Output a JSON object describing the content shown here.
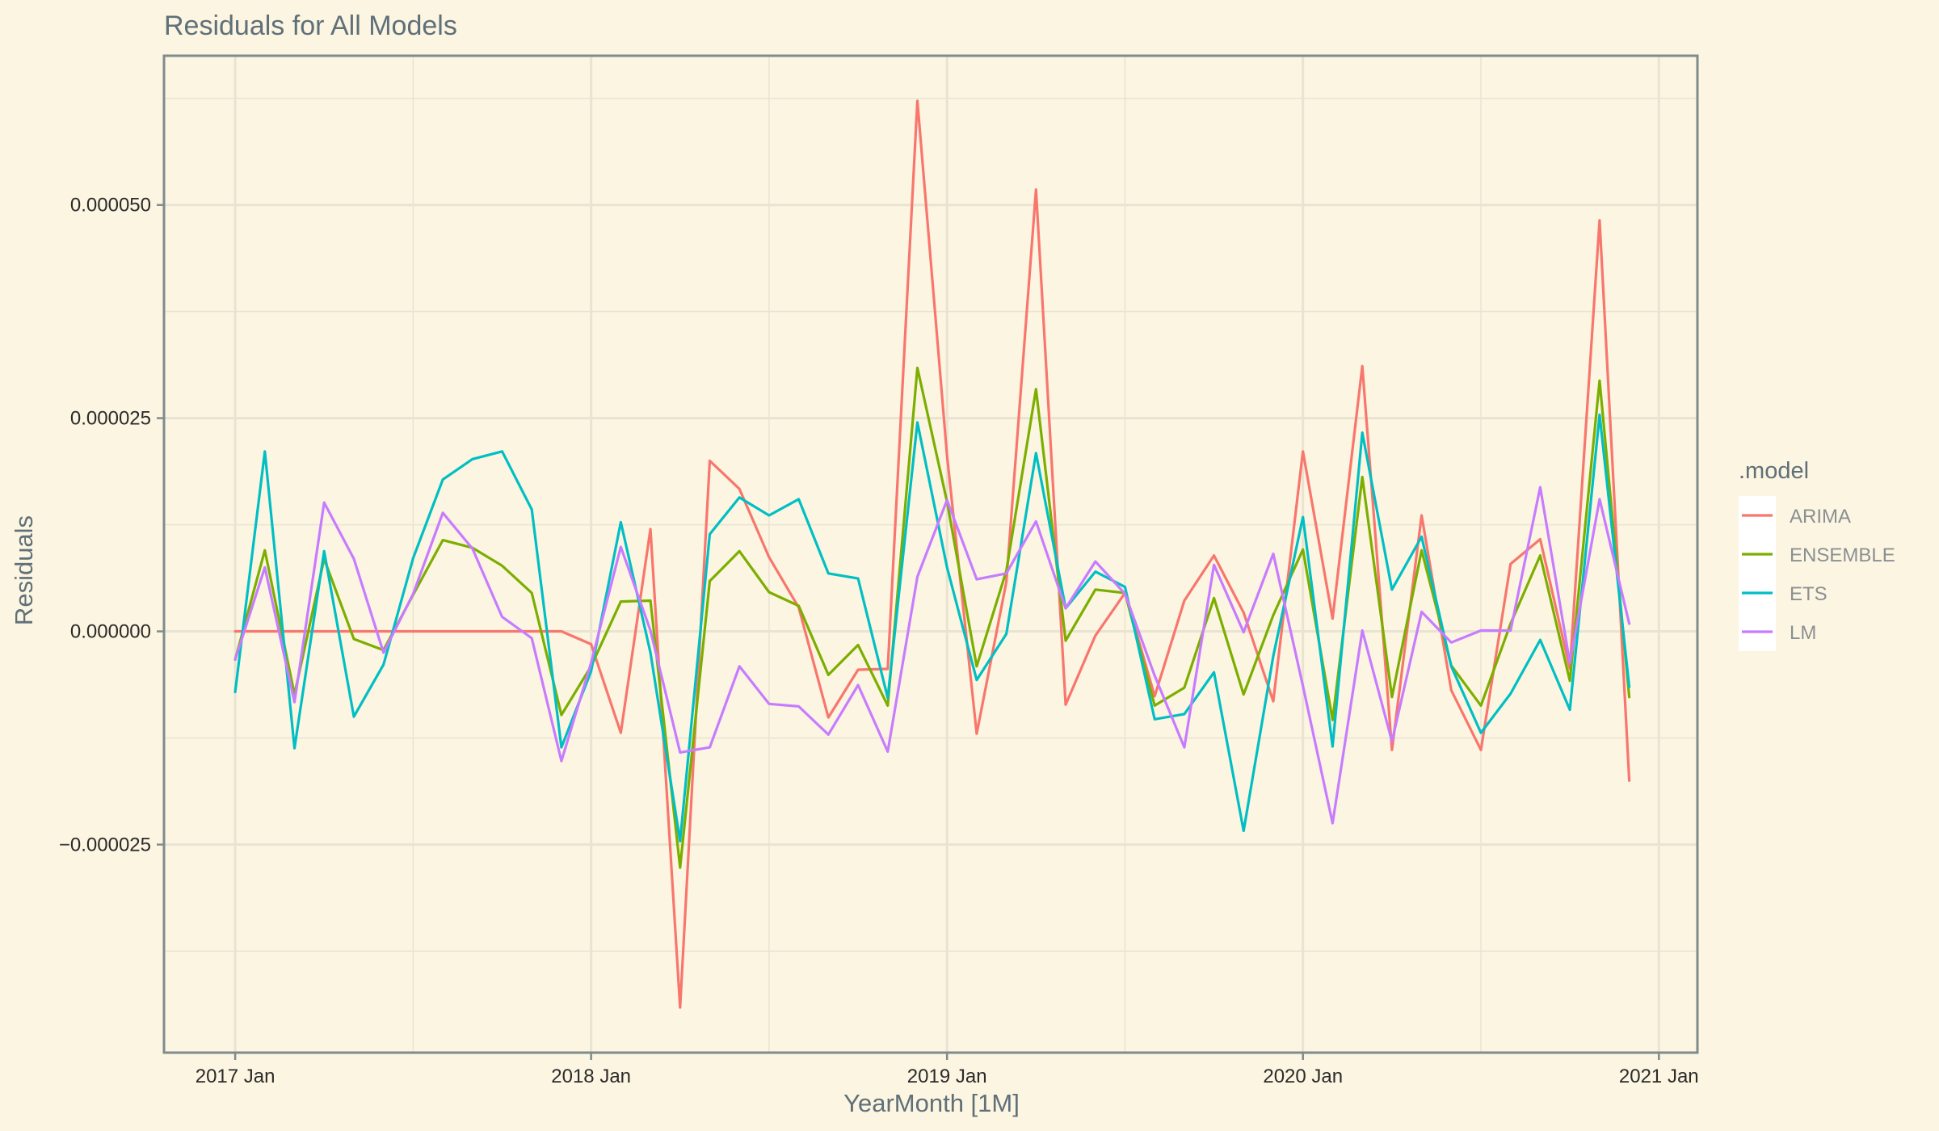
{
  "chart_data": {
    "type": "line",
    "title": "Residuals for All Models",
    "xlabel": "YearMonth [1M]",
    "ylabel": "Residuals",
    "x_start": "2017 Jan",
    "x_ticks": [
      {
        "month": 0,
        "label": "2017 Jan"
      },
      {
        "month": 12,
        "label": "2018 Jan"
      },
      {
        "month": 24,
        "label": "2019 Jan"
      },
      {
        "month": 36,
        "label": "2020 Jan"
      },
      {
        "month": 48,
        "label": "2021 Jan"
      }
    ],
    "xlim": [
      -2.4,
      49.3
    ],
    "y_ticks": [
      {
        "value": -2.5e-05,
        "label": "−0.000025"
      },
      {
        "value": 0.0,
        "label": "0.000000"
      },
      {
        "value": 2.5e-05,
        "label": "0.000025"
      },
      {
        "value": 5e-05,
        "label": "0.000050"
      }
    ],
    "ylim": [
      -4.94e-05,
      6.75e-05
    ],
    "grid": true,
    "legend_title": ".model",
    "legend_position": "right",
    "series": [
      {
        "name": "ARIMA",
        "color": "#F8766D",
        "values": [
          0.0,
          0.0,
          0.0,
          0.0,
          0.0,
          0.0,
          0.0,
          0.0,
          0.0,
          0.0,
          0.0,
          0.0,
          -1.5e-06,
          -1.19e-05,
          1.2e-05,
          -4.41e-05,
          2e-05,
          1.67e-05,
          8.7e-06,
          2.8e-06,
          -1.01e-05,
          -4.5e-06,
          -4.4e-06,
          6.22e-05,
          2.06e-05,
          -1.2e-05,
          5.8e-06,
          5.18e-05,
          -8.6e-06,
          -5e-07,
          4.5e-06,
          -7.6e-06,
          3.6e-06,
          8.9e-06,
          2.2e-06,
          -8.2e-06,
          2.11e-05,
          1.5e-06,
          3.11e-05,
          -1.39e-05,
          1.36e-05,
          -6.9e-06,
          -1.39e-05,
          7.9e-06,
          1.08e-05,
          -4.4e-06,
          4.82e-05,
          -1.75e-05
        ]
      },
      {
        "name": "ENSEMBLE",
        "color": "#7CAE00",
        "values": [
          -3.3e-06,
          9.5e-06,
          -7.4e-06,
          8.5e-06,
          -9e-07,
          -2.2e-06,
          4.3e-06,
          1.07e-05,
          9.8e-06,
          7.7e-06,
          4.5e-06,
          -9.8e-06,
          -4.1e-06,
          3.5e-06,
          3.6e-06,
          -2.77e-05,
          5.9e-06,
          9.4e-06,
          4.6e-06,
          3e-06,
          -5.1e-06,
          -1.6e-06,
          -8.7e-06,
          3.09e-05,
          1.52e-05,
          -4.1e-06,
          7.1e-06,
          2.84e-05,
          -1.1e-06,
          4.9e-06,
          4.5e-06,
          -8.7e-06,
          -6.6e-06,
          3.9e-06,
          -7.4e-06,
          1.9e-06,
          9.6e-06,
          -1.04e-05,
          1.81e-05,
          -7.7e-06,
          9.5e-06,
          -4e-06,
          -8.7e-06,
          9e-07,
          8.9e-06,
          -5.8e-06,
          2.94e-05,
          -7.7e-06
        ]
      },
      {
        "name": "ETS",
        "color": "#00BFC4",
        "values": [
          -7.1e-06,
          2.11e-05,
          -1.37e-05,
          9.4e-06,
          -1e-05,
          -3.9e-06,
          8.6e-06,
          1.78e-05,
          2.02e-05,
          2.11e-05,
          1.43e-05,
          -1.36e-05,
          -4.7e-06,
          1.28e-05,
          -2.5e-06,
          -2.46e-05,
          1.14e-05,
          1.57e-05,
          1.36e-05,
          1.55e-05,
          6.8e-06,
          6.2e-06,
          -7.8e-06,
          2.45e-05,
          7.5e-06,
          -5.7e-06,
          -3e-07,
          2.09e-05,
          2.7e-06,
          7e-06,
          5.2e-06,
          -1.03e-05,
          -9.7e-06,
          -4.8e-06,
          -2.34e-05,
          -2.9e-06,
          1.34e-05,
          -1.35e-05,
          2.33e-05,
          4.9e-06,
          1.11e-05,
          -4.1e-06,
          -1.19e-05,
          -7.3e-06,
          -1e-06,
          -9.2e-06,
          2.54e-05,
          -6.5e-06
        ]
      },
      {
        "name": "LM",
        "color": "#C77CFF",
        "values": [
          -3.3e-06,
          7.5e-06,
          -8.3e-06,
          1.51e-05,
          8.5e-06,
          -2.5e-06,
          4.4e-06,
          1.39e-05,
          9.7e-06,
          1.7e-06,
          -8e-07,
          -1.52e-05,
          -3.7e-06,
          9.9e-06,
          1e-07,
          -1.42e-05,
          -1.36e-05,
          -4.1e-06,
          -8.5e-06,
          -8.8e-06,
          -1.21e-05,
          -6.3e-06,
          -1.41e-05,
          6.4e-06,
          1.54e-05,
          6.1e-06,
          6.8e-06,
          1.29e-05,
          2.7e-06,
          8.2e-06,
          4.4e-06,
          -5.2e-06,
          -1.36e-05,
          7.8e-06,
          -1e-07,
          9.1e-06,
          -6.4e-06,
          -2.25e-05,
          1e-07,
          -1.29e-05,
          2.3e-06,
          -1.3e-06,
          1e-07,
          1e-07,
          1.69e-05,
          -3.7e-06,
          1.55e-05,
          9e-07
        ]
      }
    ]
  }
}
